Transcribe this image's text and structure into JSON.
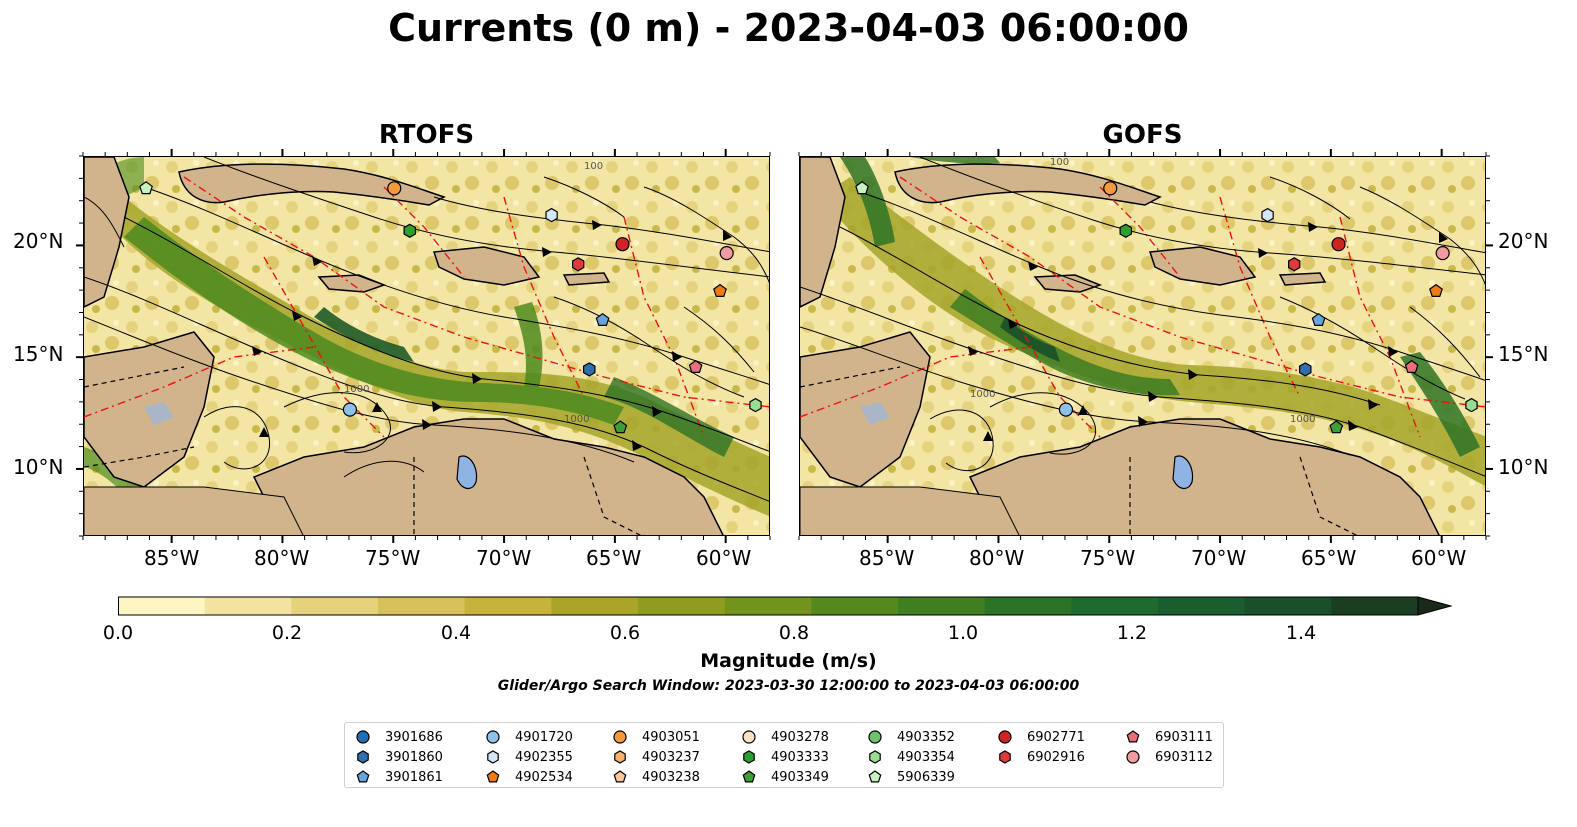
{
  "title": "Currents (0 m) - 2023-04-03 06:00:00",
  "panels": [
    {
      "name": "RTOFS"
    },
    {
      "name": "GOFS"
    }
  ],
  "longitude_ticks": [
    "85°W",
    "80°W",
    "75°W",
    "70°W",
    "65°W",
    "60°W"
  ],
  "latitude_ticks": [
    "20°N",
    "15°N",
    "10°N"
  ],
  "map_extent": {
    "lon_min": -89,
    "lon_max": -58,
    "lat_min": 7,
    "lat_max": 24
  },
  "contour_labels": [
    "1000",
    "100"
  ],
  "colorbar": {
    "label": "Magnitude (m/s)",
    "ticks": [
      "0.0",
      "0.2",
      "0.4",
      "0.6",
      "0.8",
      "1.0",
      "1.2",
      "1.4"
    ],
    "min": 0.0,
    "max": 1.5,
    "extend": "max",
    "colors": [
      "#fdf6c3",
      "#f2e4a0",
      "#e5d27b",
      "#d8c15a",
      "#c5b33d",
      "#aaa52a",
      "#8e9d20",
      "#72931c",
      "#56891c",
      "#3f7f20",
      "#2c7328",
      "#1f6a2d",
      "#1a5e2d",
      "#1a4f29",
      "#1a3e22",
      "#1a2a18"
    ]
  },
  "search_window": "Glider/Argo Search Window: 2023-03-30 12:00:00 to 2023-04-03 06:00:00",
  "legend": {
    "columns": [
      [
        {
          "id": "3901686",
          "color": "#1f6fb4",
          "shape": "circle"
        },
        {
          "id": "3901860",
          "color": "#2f6fb0",
          "shape": "hexagon"
        },
        {
          "id": "3901861",
          "color": "#6aa3dc",
          "shape": "pentagon"
        }
      ],
      [
        {
          "id": "4901720",
          "color": "#8ec1ea",
          "shape": "circle"
        },
        {
          "id": "4902355",
          "color": "#d4e6f7",
          "shape": "hexagon"
        },
        {
          "id": "4902534",
          "color": "#f07b12",
          "shape": "pentagon"
        }
      ],
      [
        {
          "id": "4903051",
          "color": "#f59a3c",
          "shape": "circle"
        },
        {
          "id": "4903237",
          "color": "#f7b26a",
          "shape": "hexagon"
        },
        {
          "id": "4903238",
          "color": "#f9c79a",
          "shape": "pentagon"
        }
      ],
      [
        {
          "id": "4903278",
          "color": "#fbe0c6",
          "shape": "circle"
        },
        {
          "id": "4903333",
          "color": "#2ca02c",
          "shape": "hexagon"
        },
        {
          "id": "4903349",
          "color": "#3e9e36",
          "shape": "pentagon"
        }
      ],
      [
        {
          "id": "4903352",
          "color": "#6cc36c",
          "shape": "circle"
        },
        {
          "id": "4903354",
          "color": "#98dd90",
          "shape": "hexagon"
        },
        {
          "id": "5906339",
          "color": "#c8f0c0",
          "shape": "pentagon"
        }
      ],
      [
        {
          "id": "6902771",
          "color": "#cf2424",
          "shape": "circle"
        },
        {
          "id": "6902916",
          "color": "#de3a3a",
          "shape": "hexagon"
        }
      ],
      [
        {
          "id": "6903111",
          "color": "#e8707a",
          "shape": "pentagon"
        },
        {
          "id": "6903112",
          "color": "#f29aa0",
          "shape": "circle"
        }
      ]
    ]
  },
  "floats_on_map": [
    {
      "id": "5906339",
      "lon": -86.2,
      "lat": 22.6
    },
    {
      "id": "4903051",
      "lon": -75.0,
      "lat": 22.6
    },
    {
      "id": "4903333",
      "lon": -74.3,
      "lat": 20.7
    },
    {
      "id": "4902355",
      "lon": -67.9,
      "lat": 21.4
    },
    {
      "id": "6902771",
      "lon": -64.7,
      "lat": 20.1
    },
    {
      "id": "6902916",
      "lon": -66.7,
      "lat": 19.2
    },
    {
      "id": "6903112",
      "lon": -60.0,
      "lat": 19.7
    },
    {
      "id": "4902534",
      "lon": -60.3,
      "lat": 18.0
    },
    {
      "id": "3901861",
      "lon": -65.6,
      "lat": 16.7
    },
    {
      "id": "3901860",
      "lon": -66.2,
      "lat": 14.5
    },
    {
      "id": "6903111",
      "lon": -61.4,
      "lat": 14.6
    },
    {
      "id": "4901720",
      "lon": -77.0,
      "lat": 12.7
    },
    {
      "id": "4903354",
      "lon": -58.7,
      "lat": 12.9
    },
    {
      "id": "4903349",
      "lon": -64.8,
      "lat": 11.9
    }
  ]
}
